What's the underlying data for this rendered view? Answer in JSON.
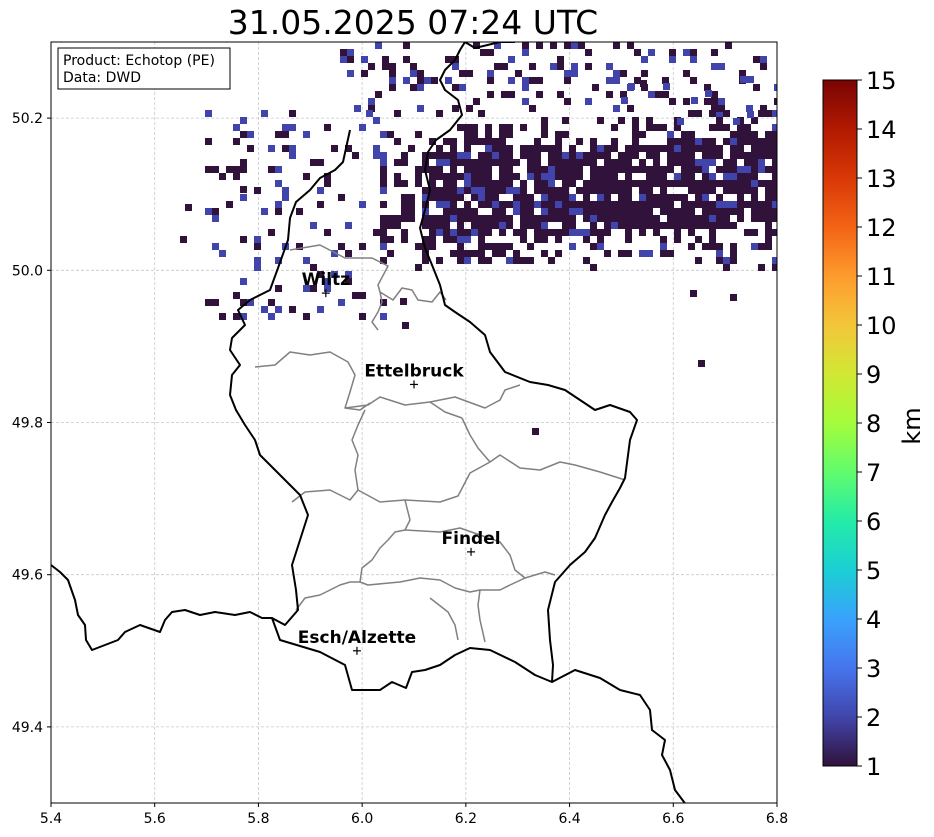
{
  "title": "31.05.2025 07:24 UTC",
  "info_box": {
    "line1": "Product: Echotop (PE)",
    "line2": "Data: DWD"
  },
  "colorbar": {
    "label": "km",
    "ticks": [
      "1",
      "2",
      "3",
      "4",
      "5",
      "6",
      "7",
      "8",
      "9",
      "10",
      "11",
      "12",
      "13",
      "14",
      "15"
    ],
    "min": 1,
    "max": 15,
    "colormap": "turbo",
    "colors": [
      "#30123b",
      "#4145ab",
      "#4675ed",
      "#39a2fc",
      "#1bcfd4",
      "#24eca6",
      "#61fc6c",
      "#a4fc3b",
      "#d1e834",
      "#f3c63a",
      "#fe9b2d",
      "#f36315",
      "#d93806",
      "#b11901",
      "#7a0402"
    ]
  },
  "axes": {
    "x_ticks": [
      "5.4",
      "5.6",
      "5.8",
      "6.0",
      "6.2",
      "6.4",
      "6.6",
      "6.8"
    ],
    "y_ticks": [
      "50.2",
      "50.0",
      "49.8",
      "49.6",
      "49.4"
    ],
    "xlim": [
      5.4,
      6.8
    ],
    "ylim": [
      49.3,
      50.3
    ],
    "grid": true
  },
  "cities": [
    {
      "name": "Wiltz",
      "lon": 5.93,
      "lat": 49.97
    },
    {
      "name": "Ettelbruck",
      "lon": 6.1,
      "lat": 49.85
    },
    {
      "name": "Findel",
      "lon": 6.21,
      "lat": 49.63
    },
    {
      "name": "Esch/Alzette",
      "lon": 5.99,
      "lat": 49.5
    }
  ],
  "echo_top_km": {
    "main_band": 1.2,
    "scattered_cells": 1.6,
    "isolated_cells": 2.3
  }
}
